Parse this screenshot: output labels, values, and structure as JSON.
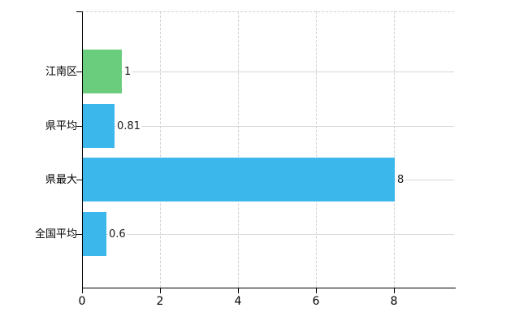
{
  "chart_data": {
    "type": "bar",
    "orientation": "horizontal",
    "title": "",
    "xlabel": "",
    "ylabel": "",
    "categories": [
      "江南区",
      "県平均",
      "県最大",
      "全国平均"
    ],
    "values": [
      1,
      0.81,
      8,
      0.6
    ],
    "value_labels": [
      "1",
      "0.81",
      "8",
      "0.6"
    ],
    "bar_colors": [
      "#69cd7d",
      "#3cb7eb",
      "#3cb7eb",
      "#3cb7eb"
    ],
    "x_ticks": [
      0,
      2,
      4,
      6,
      8
    ],
    "x_tick_labels": [
      "0",
      "2",
      "4",
      "6",
      "8"
    ],
    "xlim": [
      0,
      9.55
    ],
    "grid": true,
    "legend_position": "none"
  },
  "colors": {
    "bar_green": "#69cd7d",
    "bar_blue": "#3cb7eb",
    "axis": "#000000",
    "hgrid": "#d3d9d3",
    "vgrid": "#d6ced6",
    "background": "#ffffff",
    "text": "#000000"
  }
}
